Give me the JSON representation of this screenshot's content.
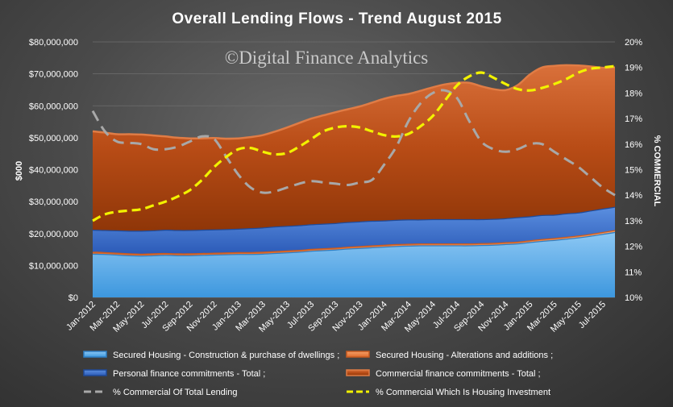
{
  "chart_data": {
    "type": "area",
    "title": "Overall Lending Flows - Trend August 2015",
    "watermark": "©Digital Finance Analytics",
    "ylabel": "$000",
    "y2label": "% COMMERCIAL",
    "ylim": [
      0,
      80000000
    ],
    "y2lim": [
      10,
      20
    ],
    "y_ticks": [
      "$0",
      "$10,000,000",
      "$20,000,000",
      "$30,000,000",
      "$40,000,000",
      "$50,000,000",
      "$60,000,000",
      "$70,000,000",
      "$80,000,000"
    ],
    "y2_ticks": [
      "10%",
      "11%",
      "12%",
      "13%",
      "14%",
      "15%",
      "16%",
      "17%",
      "18%",
      "19%",
      "20%"
    ],
    "x_tick_labels": [
      "Jan-2012",
      "Mar-2012",
      "May-2012",
      "Jul-2012",
      "Sep-2012",
      "Nov-2012",
      "Jan-2013",
      "Mar-2013",
      "May-2013",
      "Jul-2013",
      "Sep-2013",
      "Nov-2013",
      "Jan-2014",
      "Mar-2014",
      "May-2014",
      "Jul-2014",
      "Sep-2014",
      "Nov-2014",
      "Jan-2015",
      "Mar-2015",
      "May-2015",
      "Jul-2015"
    ],
    "x_positions": [
      0,
      2,
      4,
      6,
      8,
      10,
      12,
      14,
      16,
      18,
      20,
      22,
      24,
      26,
      28,
      30,
      32,
      34,
      36,
      38,
      40,
      42
    ],
    "grid": true,
    "legend_position": "bottom",
    "colors": {
      "housing": "#4fa8e8",
      "alterations": "#e8793a",
      "personal": "#3c72d0",
      "commercial": "#c4541c",
      "pct_commercial_total": "#a8a8a8",
      "pct_commercial_housing": "#f2f200"
    },
    "stacked_series": [
      {
        "name": "Secured Housing - Construction & purchase of dwellings ;",
        "values": [
          13700000,
          13600000,
          13400000,
          13200000,
          13100000,
          13200000,
          13300000,
          13200000,
          13200000,
          13300000,
          13400000,
          13500000,
          13600000,
          13600000,
          13700000,
          13900000,
          14100000,
          14300000,
          14600000,
          14800000,
          15000000,
          15300000,
          15500000,
          15700000,
          15900000,
          16100000,
          16200000,
          16300000,
          16300000,
          16300000,
          16300000,
          16300000,
          16400000,
          16500000,
          16700000,
          16900000,
          17300000,
          17700000,
          18000000,
          18400000,
          18800000,
          19300000,
          19900000,
          20500000
        ]
      },
      {
        "name": "Secured Housing - Alterations and additions ;",
        "values": [
          600000,
          600000,
          600000,
          600000,
          600000,
          600000,
          600000,
          600000,
          600000,
          600000,
          600000,
          600000,
          600000,
          600000,
          600000,
          600000,
          600000,
          600000,
          600000,
          600000,
          600000,
          600000,
          600000,
          600000,
          600000,
          600000,
          600000,
          600000,
          600000,
          600000,
          600000,
          600000,
          600000,
          600000,
          600000,
          600000,
          600000,
          600000,
          600000,
          600000,
          600000,
          600000,
          600000,
          600000
        ]
      },
      {
        "name": "Personal finance commitments - Total ;",
        "values": [
          6900000,
          6900000,
          7000000,
          7100000,
          7200000,
          7200000,
          7300000,
          7300000,
          7300000,
          7300000,
          7300000,
          7300000,
          7300000,
          7500000,
          7600000,
          7700000,
          7700000,
          7700000,
          7700000,
          7700000,
          7700000,
          7700000,
          7700000,
          7700000,
          7600000,
          7600000,
          7600000,
          7500000,
          7600000,
          7600000,
          7600000,
          7600000,
          7500000,
          7500000,
          7500000,
          7600000,
          7500000,
          7500000,
          7300000,
          7300000,
          7200000,
          7300000,
          7300000,
          7300000
        ]
      },
      {
        "name": "Commercial finance commitments - Total ;",
        "values": [
          30800000,
          30500000,
          30100000,
          30200000,
          30100000,
          29700000,
          29200000,
          28900000,
          28700000,
          28600000,
          28600000,
          28300000,
          28300000,
          28500000,
          28900000,
          29700000,
          30800000,
          32000000,
          33100000,
          33900000,
          34700000,
          35300000,
          36000000,
          37000000,
          38100000,
          38800000,
          39300000,
          40300000,
          41300000,
          42200000,
          42700000,
          42700000,
          41600000,
          40600000,
          40100000,
          41400000,
          44400000,
          46200000,
          46600000,
          46400000,
          46000000,
          45100000,
          44100000,
          43600000
        ]
      }
    ],
    "line_series": [
      {
        "name": "% Commercial Of Total Lending",
        "axis": "y2",
        "values": [
          17.3,
          16.5,
          16.1,
          16.05,
          16.0,
          15.8,
          15.8,
          15.9,
          16.1,
          16.3,
          16.2,
          15.5,
          14.8,
          14.3,
          14.1,
          14.15,
          14.3,
          14.45,
          14.55,
          14.5,
          14.45,
          14.4,
          14.5,
          14.6,
          15.2,
          15.9,
          16.9,
          17.6,
          18.0,
          18.1,
          17.8,
          16.9,
          16.1,
          15.8,
          15.7,
          15.8,
          16.0,
          16.0,
          15.7,
          15.4,
          15.1,
          14.7,
          14.3,
          14.0
        ]
      },
      {
        "name": "% Commercial Which Is Housing Investment",
        "axis": "y2",
        "values": [
          13.0,
          13.25,
          13.35,
          13.4,
          13.45,
          13.6,
          13.75,
          13.95,
          14.2,
          14.6,
          15.1,
          15.5,
          15.8,
          15.85,
          15.7,
          15.6,
          15.65,
          15.9,
          16.2,
          16.5,
          16.65,
          16.7,
          16.65,
          16.5,
          16.35,
          16.3,
          16.4,
          16.7,
          17.1,
          17.7,
          18.3,
          18.65,
          18.8,
          18.6,
          18.35,
          18.15,
          18.1,
          18.2,
          18.35,
          18.55,
          18.8,
          18.95,
          19.0,
          19.05
        ]
      }
    ]
  }
}
